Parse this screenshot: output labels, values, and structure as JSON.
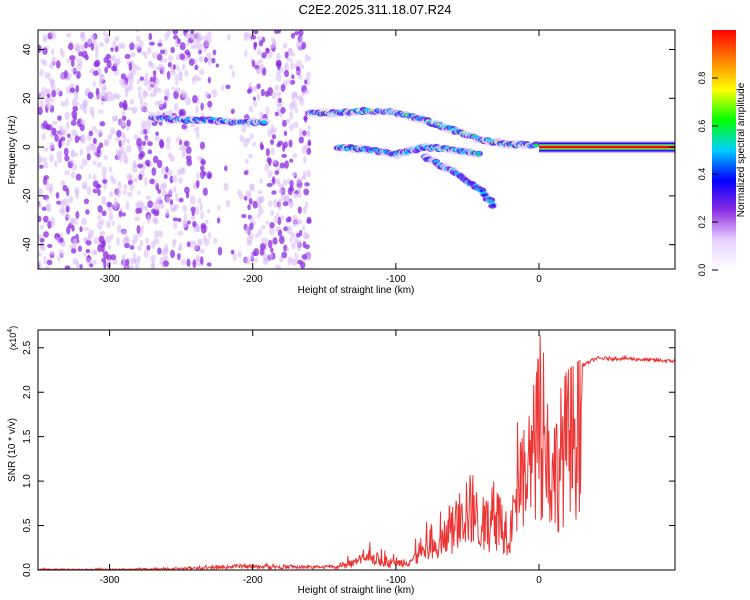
{
  "title": "C2E2.2025.311.18.07.R24",
  "chart_data": [
    {
      "type": "heatmap",
      "title": "C2E2.2025.311.18.07.R24",
      "xlabel": "Height of straight line (km)",
      "ylabel": "Frequency (Hz)",
      "xlim": [
        -350,
        95
      ],
      "ylim": [
        -50,
        48
      ],
      "xticks": [
        -300,
        -200,
        -100,
        0
      ],
      "xtick_labels": [
        "-300",
        "-200",
        "-100",
        "0"
      ],
      "yticks": [
        -40,
        -20,
        0,
        20,
        40
      ],
      "ytick_labels": [
        "-40",
        "-20",
        "0",
        "20",
        "40"
      ],
      "features": [
        {
          "name": "noise-band-left",
          "x_range": [
            -350,
            -160
          ],
          "freq_range": [
            -50,
            48
          ],
          "amplitude": 0.1
        },
        {
          "name": "branch-upper-left",
          "points": [
            [
              -270,
              12
            ],
            [
              -250,
              11
            ],
            [
              -230,
              11
            ],
            [
              -210,
              10
            ],
            [
              -190,
              10
            ]
          ],
          "amplitude": 0.5
        },
        {
          "name": "branch-upper-right",
          "points": [
            [
              -160,
              14
            ],
            [
              -140,
              14
            ],
            [
              -120,
              15
            ],
            [
              -100,
              14
            ],
            [
              -80,
              11
            ],
            [
              -60,
              7
            ],
            [
              -40,
              3
            ],
            [
              -20,
              1
            ],
            [
              0,
              1
            ]
          ],
          "amplitude": 0.7
        },
        {
          "name": "branch-lower",
          "points": [
            [
              -140,
              0
            ],
            [
              -120,
              -1
            ],
            [
              -100,
              -3
            ],
            [
              -80,
              0
            ],
            [
              -60,
              -1
            ],
            [
              -40,
              -3
            ]
          ],
          "amplitude": 0.5
        },
        {
          "name": "branch-falling",
          "points": [
            [
              -80,
              -4
            ],
            [
              -60,
              -10
            ],
            [
              -40,
              -18
            ],
            [
              -30,
              -25
            ]
          ],
          "amplitude": 0.3
        },
        {
          "name": "carrier-line",
          "points": [
            [
              0,
              0
            ],
            [
              95,
              0
            ]
          ],
          "amplitude": 1.0
        }
      ],
      "colorbar": {
        "label": "Normalized spectral amplitude",
        "range": [
          0,
          1
        ],
        "ticks": [
          0.0,
          0.2,
          0.4,
          0.6,
          0.8
        ],
        "tick_labels": [
          "0.0",
          "0.2",
          "0.4",
          "0.6",
          "0.8"
        ],
        "colors": [
          "#ffffff",
          "#e8d0ff",
          "#8b2be2",
          "#0000ff",
          "#00d0ff",
          "#00ff00",
          "#ffff00",
          "#ff8000",
          "#ff0000"
        ]
      }
    },
    {
      "type": "line",
      "xlabel": "Height of straight line (km)",
      "ylabel": "SNR (10 * v/v)",
      "y_exponent_label": "(x10",
      "y_exponent_power": "4",
      "y_exponent_close": ")",
      "xlim": [
        -350,
        95
      ],
      "ylim": [
        0,
        2.7
      ],
      "xticks": [
        -300,
        -200,
        -100,
        0
      ],
      "xtick_labels": [
        "-300",
        "-200",
        "-100",
        "0"
      ],
      "yticks": [
        0.0,
        0.5,
        1.0,
        1.5,
        2.0,
        2.5
      ],
      "ytick_labels": [
        "0.0",
        "0.5",
        "1.0",
        "1.5",
        "2.0",
        "2.5"
      ],
      "series": [
        {
          "name": "SNR",
          "color": "#ee3333",
          "x": [
            -350,
            -300,
            -250,
            -220,
            -210,
            -200,
            -180,
            -160,
            -140,
            -130,
            -120,
            -110,
            -100,
            -90,
            -80,
            -70,
            -60,
            -50,
            -40,
            -30,
            -20,
            -15,
            -10,
            -5,
            0,
            5,
            10,
            20,
            30,
            40,
            60,
            80,
            95
          ],
          "y": [
            0.01,
            0.01,
            0.02,
            0.04,
            0.06,
            0.05,
            0.05,
            0.04,
            0.05,
            0.1,
            0.22,
            0.15,
            0.1,
            0.15,
            0.25,
            0.35,
            0.65,
            1.0,
            0.7,
            0.85,
            0.6,
            1.2,
            1.4,
            1.8,
            2.1,
            1.9,
            1.5,
            2.1,
            2.3,
            2.38,
            2.38,
            2.36,
            2.35
          ],
          "envelope": [
            0.02,
            0.02,
            0.04,
            0.06,
            0.08,
            0.07,
            0.07,
            0.06,
            0.08,
            0.2,
            0.35,
            0.3,
            0.25,
            0.35,
            0.55,
            0.9,
            1.1,
            1.4,
            1.0,
            1.35,
            1.1,
            1.7,
            1.9,
            2.4,
            2.7,
            2.3,
            2.0,
            2.25,
            2.38,
            2.42,
            2.41,
            2.39,
            2.38
          ]
        }
      ]
    }
  ]
}
